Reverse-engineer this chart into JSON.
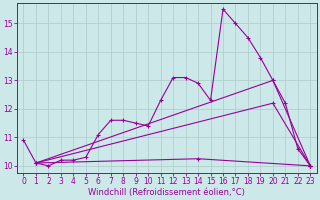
{
  "bg_color": "#cce8e8",
  "line_color": "#990099",
  "grid_color": "#aacccc",
  "xlabel": "Windchill (Refroidissement éolien,°C)",
  "xlabel_fontsize": 6,
  "tick_fontsize": 5.5,
  "ylim": [
    9.75,
    15.7
  ],
  "xlim": [
    -0.5,
    23.5
  ],
  "yticks": [
    10,
    11,
    12,
    13,
    14,
    15
  ],
  "xticks": [
    0,
    1,
    2,
    3,
    4,
    5,
    6,
    7,
    8,
    9,
    10,
    11,
    12,
    13,
    14,
    15,
    16,
    17,
    18,
    19,
    20,
    21,
    22,
    23
  ],
  "series_main": {
    "x": [
      0,
      1,
      2,
      3,
      4,
      5,
      6,
      7,
      8,
      9,
      10,
      11,
      12,
      13,
      14,
      15,
      16,
      17,
      18,
      19,
      20,
      21,
      22,
      23
    ],
    "y": [
      10.9,
      10.1,
      10.0,
      10.2,
      10.2,
      10.3,
      11.1,
      11.6,
      11.6,
      11.5,
      11.4,
      12.3,
      13.1,
      13.1,
      12.9,
      12.3,
      15.5,
      15.0,
      14.5,
      13.8,
      13.0,
      12.2,
      10.6,
      10.0
    ]
  },
  "line2": {
    "x": [
      1,
      20,
      23
    ],
    "y": [
      10.1,
      13.0,
      10.0
    ]
  },
  "line3": {
    "x": [
      1,
      20,
      23
    ],
    "y": [
      10.1,
      12.2,
      10.0
    ]
  },
  "line4": {
    "x": [
      1,
      14,
      23
    ],
    "y": [
      10.1,
      10.25,
      10.0
    ]
  }
}
